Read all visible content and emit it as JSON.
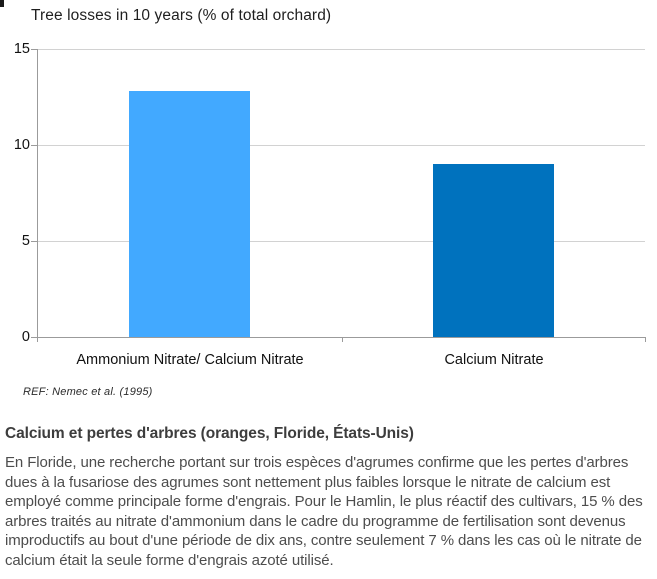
{
  "chart_data": {
    "type": "bar",
    "title": "Tree losses in 10 years (% of total orchard)",
    "categories": [
      "Ammonium Nitrate/ Calcium Nitrate",
      "Calcium Nitrate"
    ],
    "values": [
      12.8,
      9.0
    ],
    "bar_colors": [
      "#42A9FF",
      "#0072BE"
    ],
    "ylim": [
      0,
      15
    ],
    "yticks": [
      0,
      5,
      10,
      15
    ],
    "grid": true,
    "legend": "none",
    "xlabel": "",
    "ylabel": "",
    "source": "REF: Nemec et al. (1995)"
  },
  "article": {
    "heading": "Calcium et pertes d'arbres (oranges, Floride, États-Unis)",
    "paragraph": "En Floride, une recherche portant sur trois espèces d'agrumes confirme que les pertes d'arbres dues à la fusariose des agrumes sont nettement plus faibles lorsque le nitrate de calcium est employé comme principale forme d'engrais. Pour le Hamlin, le plus réactif des cultivars, 15 % des arbres traités au nitrate d'ammonium dans le cadre du programme de fertilisation sont devenus improductifs au bout d'une période de dix ans, contre seulement 7 % dans les cas où le nitrate de calcium était la seule forme d'engrais azoté utilisé."
  },
  "colors": {
    "bar_light_blue": "#42A9FF",
    "bar_dark_blue": "#0072BE",
    "gridline": "#D2D2D2",
    "axis": "#9B9B9B",
    "title_text": "#1F1F1F",
    "body_text": "#4D4D4D"
  }
}
